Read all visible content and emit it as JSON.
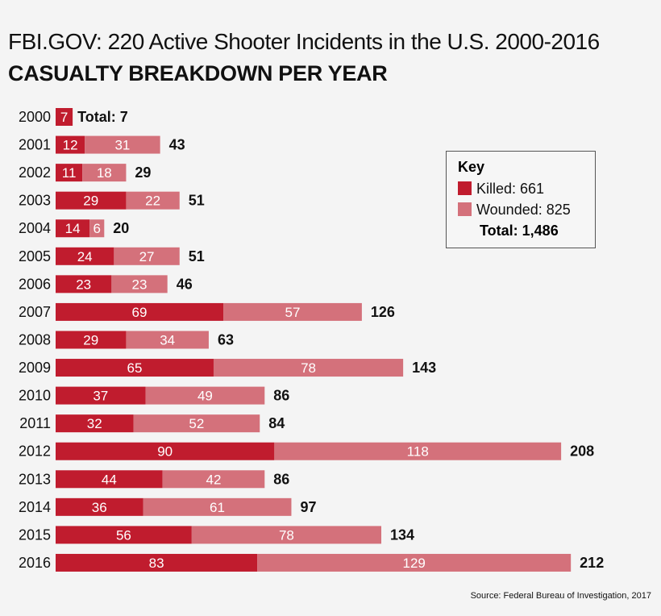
{
  "chart_data": {
    "type": "bar",
    "orientation": "horizontal",
    "stacked": true,
    "title": "FBI.GOV: 220 Active Shooter Incidents in the U.S. 2000-2016",
    "subtitle": "CASUALTY BREAKDOWN PER YEAR",
    "categories": [
      "2000",
      "2001",
      "2002",
      "2003",
      "2004",
      "2005",
      "2006",
      "2007",
      "2008",
      "2009",
      "2010",
      "2011",
      "2012",
      "2013",
      "2014",
      "2015",
      "2016"
    ],
    "series": [
      {
        "name": "Killed",
        "color": "#c01c2e",
        "values": [
          7,
          12,
          11,
          29,
          14,
          24,
          23,
          69,
          29,
          65,
          37,
          32,
          90,
          44,
          36,
          56,
          83
        ]
      },
      {
        "name": "Wounded",
        "color": "#d4717b",
        "values": [
          0,
          31,
          18,
          22,
          6,
          27,
          23,
          57,
          34,
          78,
          49,
          52,
          118,
          42,
          61,
          78,
          129
        ]
      }
    ],
    "totals": [
      "Total: 7",
      "43",
      "29",
      "51",
      "20",
      "51",
      "46",
      "126",
      "63",
      "143",
      "86",
      "84",
      "208",
      "86",
      "97",
      "134",
      "212"
    ],
    "grid": false,
    "legend": {
      "title": "Key",
      "placement": "right",
      "killed": "Killed: 661",
      "wounded": "Wounded: 825",
      "total": "Total: 1,486"
    },
    "source": "Source: Federal Bureau of Investigation, 2017"
  }
}
